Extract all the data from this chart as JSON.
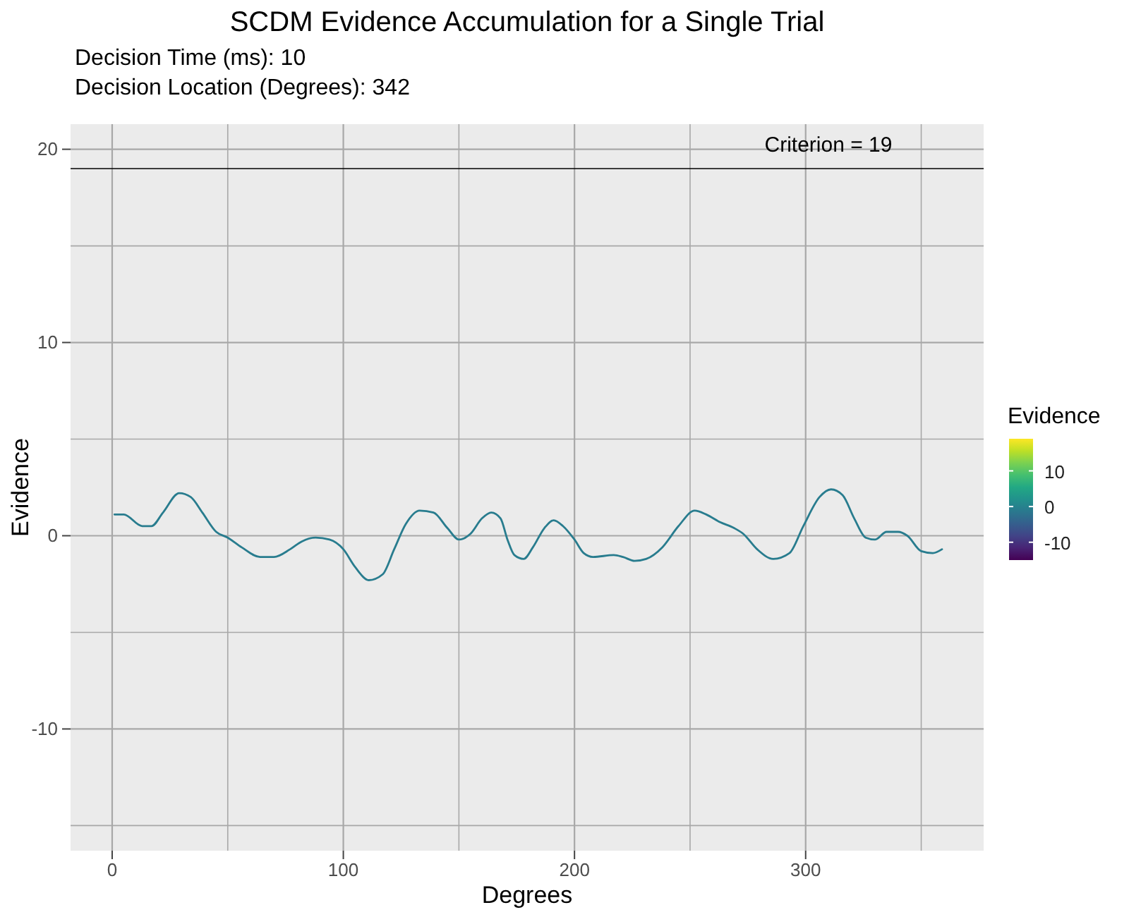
{
  "chart_data": {
    "type": "line",
    "title": "SCDM Evidence Accumulation for a Single Trial",
    "subtitle": "Decision Time (ms): 10\nDecision Location (Degrees): 342",
    "xlabel": "Degrees",
    "ylabel": "Evidence",
    "clabel": "Evidence",
    "clim": [
      -15,
      19
    ],
    "cticks": [
      -10,
      0,
      10
    ],
    "x": [
      1,
      5,
      13,
      17,
      22,
      29,
      34,
      39,
      45,
      50,
      56,
      64,
      70,
      77,
      82,
      88,
      94,
      100,
      105,
      111,
      117,
      122,
      127,
      133,
      139,
      145,
      150,
      155,
      160,
      164,
      168,
      171,
      174,
      178,
      182,
      187,
      191,
      195,
      200,
      204,
      208,
      217,
      221,
      226,
      231,
      238,
      245,
      252,
      257,
      263,
      269,
      273,
      279,
      286,
      293,
      299,
      306,
      311,
      316,
      321,
      326,
      330,
      335,
      340,
      344,
      350,
      355,
      359
    ],
    "series": [
      {
        "values": [
          1.1,
          1.1,
          0.5,
          0.5,
          1.2,
          2.2,
          2.0,
          1.2,
          0.2,
          -0.1,
          -0.6,
          -1.1,
          -1.1,
          -0.7,
          -0.3,
          -0.1,
          -0.2,
          -0.7,
          -1.6,
          -2.3,
          -2.0,
          -0.7,
          0.6,
          1.3,
          1.2,
          0.4,
          -0.2,
          0.1,
          0.9,
          1.2,
          0.9,
          -0.2,
          -1.0,
          -1.2,
          -0.6,
          0.4,
          0.8,
          0.5,
          -0.2,
          -0.9,
          -1.1,
          -1.0,
          -1.1,
          -1.3,
          -1.2,
          -0.6,
          0.5,
          1.3,
          1.1,
          0.7,
          0.4,
          0.1,
          -0.7,
          -1.2,
          -0.9,
          0.5,
          2.0,
          2.4,
          2.1,
          0.9,
          -0.1,
          -0.2,
          0.2,
          0.2,
          0.0,
          -0.8,
          -0.9,
          -0.7
        ],
        "color": "#287c8e"
      }
    ],
    "xlim": [
      -18,
      377
    ],
    "ylim": [
      -16.3,
      21.3
    ],
    "xticks": [
      0,
      100,
      200,
      300
    ],
    "yticks": [
      -10,
      0,
      10,
      20
    ],
    "grid": true,
    "ref_lines": [
      {
        "axis": "y",
        "value": 19,
        "label": "Criterion = 19",
        "color": "#000000"
      }
    ]
  }
}
